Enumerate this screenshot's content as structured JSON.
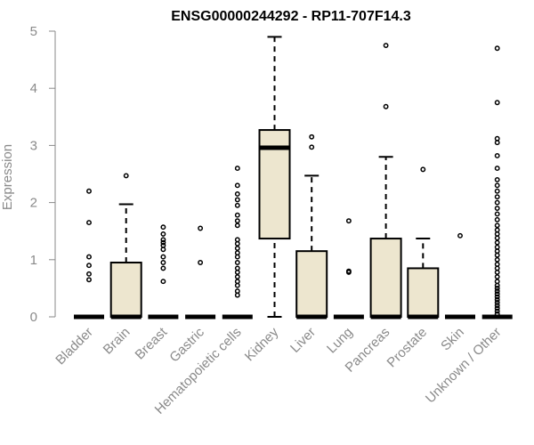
{
  "colors": {
    "box_fill": "#ede6cf",
    "stroke": "#000000",
    "axis": "#8a8a8a",
    "text_muted": "#8a8a8a",
    "title": "#000000"
  },
  "chart_data": {
    "type": "boxplot",
    "title": "ENSG00000244292 - RP11-707F14.3",
    "xlabel": "",
    "ylabel": "Expression",
    "ylim": [
      0,
      5
    ],
    "yticks": [
      0,
      1,
      2,
      3,
      4,
      5
    ],
    "grid": false,
    "categories": [
      "Bladder",
      "Brain",
      "Breast",
      "Gastric",
      "Hematopoietic cells",
      "Kidney",
      "Liver",
      "Lung",
      "Pancreas",
      "Prostate",
      "Skin",
      "Unknown / Other"
    ],
    "boxes": [
      {
        "min": 0,
        "q1": 0,
        "median": 0,
        "q3": 0,
        "max": 0,
        "outliers": [
          0.65,
          0.75,
          0.9,
          1.05,
          1.65,
          2.2
        ]
      },
      {
        "min": 0,
        "q1": 0,
        "median": 0,
        "q3": 0.95,
        "max": 1.97,
        "outliers": [
          2.47
        ]
      },
      {
        "min": 0,
        "q1": 0,
        "median": 0,
        "q3": 0,
        "max": 0,
        "outliers": [
          0.62,
          0.85,
          0.95,
          1.05,
          1.18,
          1.25,
          1.3,
          1.35,
          1.45,
          1.57
        ]
      },
      {
        "min": 0,
        "q1": 0,
        "median": 0,
        "q3": 0,
        "max": 0,
        "outliers": [
          0.95,
          1.55
        ]
      },
      {
        "min": 0,
        "q1": 0,
        "median": 0,
        "q3": 0,
        "max": 0,
        "outliers": [
          0.38,
          0.45,
          0.55,
          0.62,
          0.7,
          0.78,
          0.85,
          0.95,
          1.05,
          1.12,
          1.2,
          1.28,
          1.35,
          1.6,
          1.68,
          1.78,
          1.95,
          2.05,
          2.15,
          2.3,
          2.6
        ]
      },
      {
        "min": 0,
        "q1": 1.37,
        "median": 2.96,
        "q3": 3.27,
        "max": 4.9,
        "outliers": []
      },
      {
        "min": 0,
        "q1": 0,
        "median": 0,
        "q3": 1.15,
        "max": 2.47,
        "outliers": [
          2.97,
          3.15
        ]
      },
      {
        "min": 0,
        "q1": 0,
        "median": 0,
        "q3": 0,
        "max": 0,
        "outliers": [
          0.78,
          0.8,
          1.68
        ]
      },
      {
        "min": 0,
        "q1": 0,
        "median": 0,
        "q3": 1.37,
        "max": 2.8,
        "outliers": [
          3.68,
          4.75
        ]
      },
      {
        "min": 0,
        "q1": 0,
        "median": 0,
        "q3": 0.85,
        "max": 1.37,
        "outliers": [
          2.58
        ]
      },
      {
        "min": 0,
        "q1": 0,
        "median": 0,
        "q3": 0,
        "max": 0,
        "outliers": [
          1.42
        ]
      },
      {
        "min": 0,
        "q1": 0,
        "median": 0,
        "q3": 0,
        "max": 0,
        "outliers": [
          0.05,
          0.1,
          0.15,
          0.2,
          0.25,
          0.3,
          0.35,
          0.4,
          0.45,
          0.5,
          0.55,
          0.62,
          0.7,
          0.78,
          0.85,
          0.92,
          1.0,
          1.08,
          1.15,
          1.22,
          1.3,
          1.38,
          1.45,
          1.52,
          1.6,
          1.7,
          1.8,
          1.9,
          2.0,
          2.1,
          2.2,
          2.3,
          2.4,
          2.6,
          2.82,
          3.05,
          3.12,
          3.75,
          4.7
        ]
      }
    ]
  }
}
